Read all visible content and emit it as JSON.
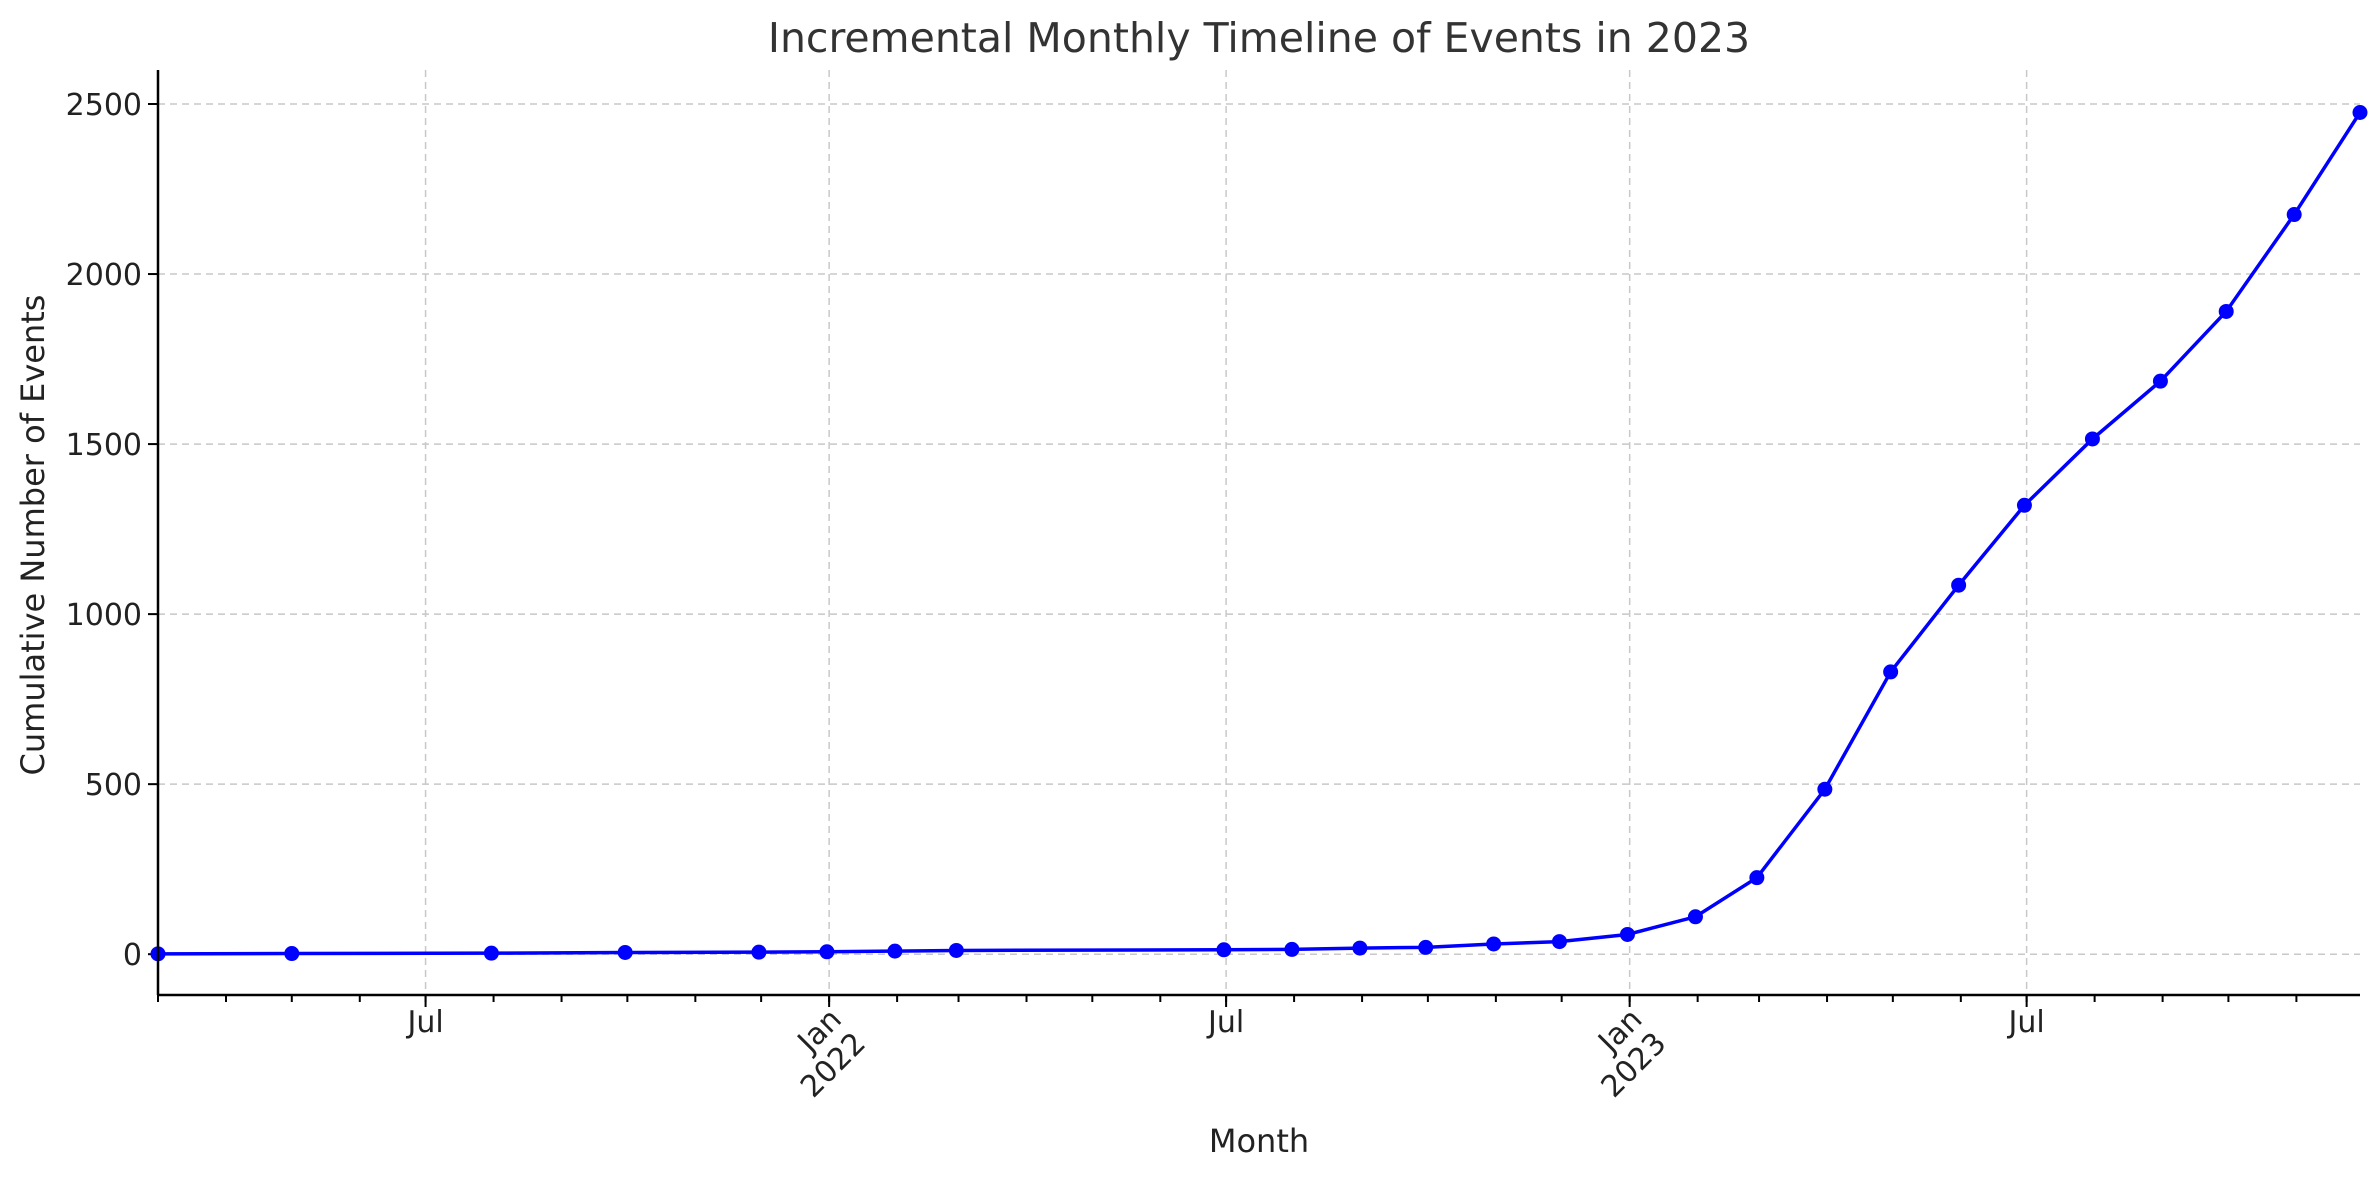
{
  "chart_data": {
    "type": "line",
    "title": "Incremental Monthly Timeline of Events in 2023",
    "xlabel": "Month",
    "ylabel": "Cumulative Number of Events",
    "xlim": [
      "2021-03-01",
      "2023-11-30"
    ],
    "ylim": [
      -120,
      2600
    ],
    "yticks": [
      0,
      500,
      1000,
      1500,
      2000,
      2500
    ],
    "xticks": [
      {
        "date": "2021-07-01",
        "label": "Jul",
        "rotate": false
      },
      {
        "date": "2022-01-01",
        "label": "Jan\n2022",
        "rotate": true
      },
      {
        "date": "2022-07-01",
        "label": "Jul",
        "rotate": false
      },
      {
        "date": "2023-01-01",
        "label": "Jan\n2023",
        "rotate": true
      },
      {
        "date": "2023-07-01",
        "label": "Jul",
        "rotate": false
      }
    ],
    "grid": "dashed",
    "line_color": "#0000ff",
    "series": [
      {
        "x": [
          "2021-03-01",
          "2021-05-01",
          "2021-07-31",
          "2021-09-30",
          "2021-11-30",
          "2021-12-31",
          "2022-01-31",
          "2022-02-28",
          "2022-06-30",
          "2022-07-31",
          "2022-08-31",
          "2022-09-30",
          "2022-10-31",
          "2022-11-30",
          "2022-12-31",
          "2023-01-31",
          "2023-02-28",
          "2023-03-31",
          "2023-04-30",
          "2023-05-31",
          "2023-06-30",
          "2023-07-31",
          "2023-08-31",
          "2023-09-30",
          "2023-10-31",
          "2023-11-30"
        ],
        "y": [
          1,
          2,
          3,
          5,
          6,
          7,
          9,
          11,
          13,
          14,
          18,
          20,
          30,
          37,
          58,
          110,
          225,
          485,
          830,
          1085,
          1320,
          1515,
          1685,
          1890,
          2175,
          2475
        ]
      }
    ]
  }
}
